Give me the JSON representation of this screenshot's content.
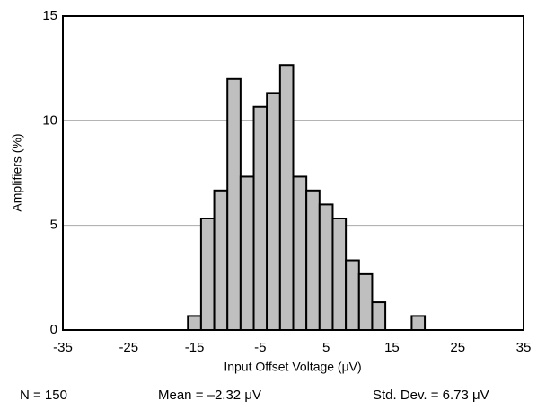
{
  "chart_data": {
    "type": "histogram",
    "xlabel": "Input Offset Voltage (μV)",
    "ylabel": "Amplifiers (%)",
    "bins": [
      -16,
      -14,
      -12,
      -10,
      -8,
      -6,
      -4,
      -2,
      0,
      2,
      4,
      6,
      8,
      10,
      12,
      14,
      16,
      18,
      20
    ],
    "values": [
      0.67,
      5.33,
      6.67,
      12,
      7.33,
      10.67,
      11.33,
      12.67,
      7.33,
      6.67,
      6,
      5.33,
      3.33,
      2.67,
      1.33,
      0,
      0,
      0.67
    ],
    "color": "#bfbfbf",
    "xlim": [
      -35,
      35
    ],
    "xticks": [
      -35,
      -25,
      -15,
      -5,
      5,
      15,
      25,
      35
    ],
    "ylim": [
      0,
      15
    ],
    "yticks": [
      0,
      5,
      10,
      15
    ],
    "grid": true,
    "annotations": [
      "N = 150",
      "Mean = –2.32 μV",
      "Std. Dev. = 6.73 μV"
    ]
  }
}
